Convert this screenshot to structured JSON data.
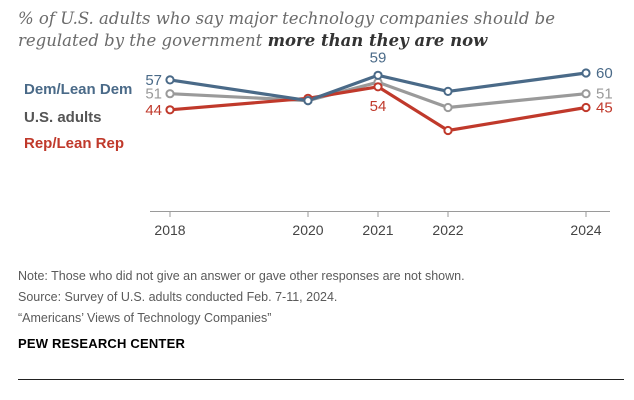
{
  "title": {
    "part1": "% of U.S. adults who say major technology companies should be regulated by the government ",
    "emphasis": "more than they are now"
  },
  "chart_data": {
    "type": "line",
    "x": [
      "2018",
      "2020",
      "2021",
      "2022",
      "2024"
    ],
    "ylim": [
      0,
      70
    ],
    "series": [
      {
        "name": "Dem/Lean Dem",
        "color": "#4a6a88",
        "values": [
          57,
          48,
          59,
          52,
          60
        ],
        "labels": {
          "0": "57",
          "2": "59",
          "4": "60"
        }
      },
      {
        "name": "U.S. adults",
        "color": "#9a9a9a",
        "values": [
          51,
          48,
          56,
          45,
          51
        ],
        "labels": {
          "0": "51",
          "4": "51"
        }
      },
      {
        "name": "Rep/Lean Rep",
        "color": "#c0392b",
        "values": [
          44,
          49,
          54,
          35,
          45
        ],
        "labels": {
          "0": "44",
          "2": "54",
          "4": "45"
        }
      }
    ]
  },
  "notes": {
    "note": "Note: Those who did not give an answer or gave other responses are not shown.",
    "source": "Source: Survey of U.S. adults conducted Feb. 7-11, 2024.",
    "report": "“Americans’ Views of Technology Companies”"
  },
  "org": "PEW RESEARCH CENTER"
}
